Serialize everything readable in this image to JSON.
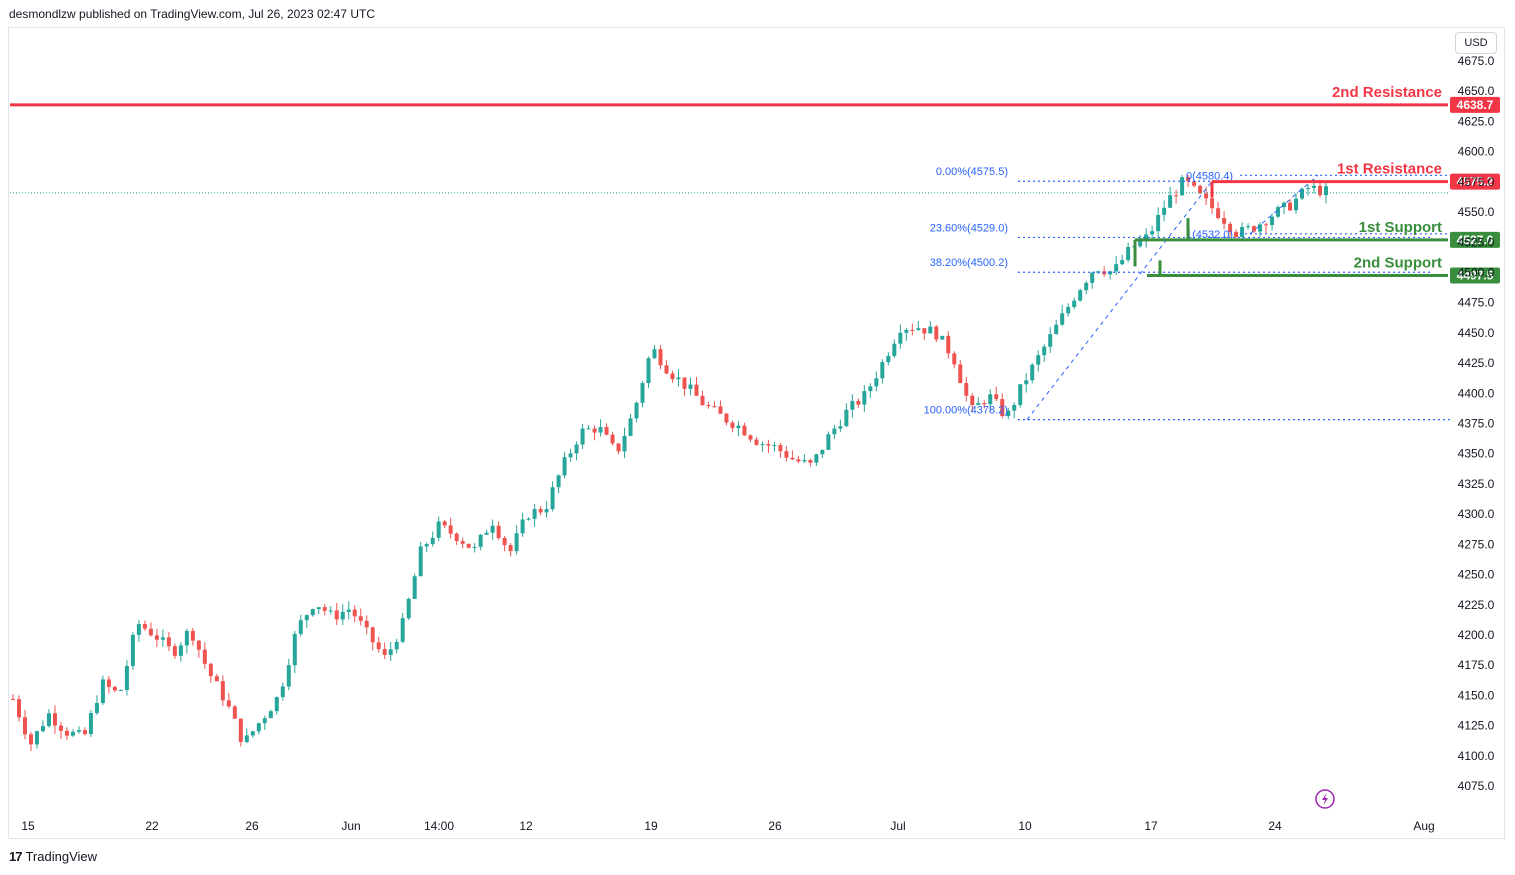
{
  "header": {
    "published": "desmondlzw published on TradingView.com, Jul 26, 2023 02:47 UTC"
  },
  "currency": "USD",
  "footer": {
    "logo_mark": "17",
    "logo_text": "TradingView"
  },
  "colors": {
    "up": "#26a69a",
    "down": "#ef5350",
    "resistance": "#f23645",
    "support": "#388e3c",
    "fib": "#2962ff",
    "axis_text": "#131722"
  },
  "icons": {
    "replay": "lightning-icon"
  },
  "chart_data": {
    "type": "candlestick",
    "y_axis": {
      "min": 4065,
      "max": 4685,
      "ticks": [
        "4675.0",
        "4650.0",
        "4625.0",
        "4600.0",
        "4575.0",
        "4550.0",
        "4525.0",
        "4500.0",
        "4475.0",
        "4450.0",
        "4425.0",
        "4400.0",
        "4375.0",
        "4350.0",
        "4325.0",
        "4300.0",
        "4275.0",
        "4250.0",
        "4225.0",
        "4200.0",
        "4175.0",
        "4150.0",
        "4125.0",
        "4100.0",
        "4075.0"
      ]
    },
    "x_axis": {
      "ticks": [
        "15",
        "22",
        "26",
        "Jun",
        "14:00",
        "12",
        "19",
        "26",
        "Jul",
        "10",
        "17",
        "24",
        "Aug"
      ]
    },
    "price_path": [
      4147,
      4110,
      4135,
      4120,
      4115,
      4160,
      4150,
      4210,
      4200,
      4185,
      4205,
      4170,
      4145,
      4110,
      4130,
      4150,
      4205,
      4228,
      4215,
      4222,
      4200,
      4180,
      4210,
      4270,
      4290,
      4282,
      4270,
      4295,
      4268,
      4300,
      4305,
      4340,
      4368,
      4372,
      4350,
      4385,
      4438,
      4418,
      4405,
      4390,
      4380,
      4372,
      4360,
      4355,
      4345,
      4340,
      4365,
      4385,
      4398,
      4425,
      4455,
      4455,
      4450,
      4430,
      4385,
      4398,
      4380,
      4410,
      4435,
      4460,
      4485,
      4505,
      4500,
      4520,
      4530,
      4558,
      4576,
      4561,
      4548,
      4532,
      4538,
      4548,
      4556,
      4570,
      4567
    ],
    "levels": [
      {
        "label": "2nd Resistance",
        "value": 4638.7,
        "tag": "4638.7",
        "kind": "resistance"
      },
      {
        "label": "1st Resistance",
        "value": 4575.2,
        "tag": "4575.2",
        "kind": "resistance"
      },
      {
        "label": "1st Support",
        "value": 4527.0,
        "tag": "4527.0",
        "kind": "support"
      },
      {
        "label": "2nd Support",
        "value": 4497.5,
        "tag": "4497.5",
        "kind": "support"
      }
    ],
    "fib_large": [
      {
        "label": "0.00%(4575.5)",
        "value": 4575.5
      },
      {
        "label": "23.60%(4529.0)",
        "value": 4529.0
      },
      {
        "label": "38.20%(4500.2)",
        "value": 4500.2
      },
      {
        "label": "100.00%(4378.2)",
        "value": 4378.2
      }
    ],
    "fib_small": [
      {
        "label": "0(4580.4)",
        "value": 4580.4
      },
      {
        "label": "1(4532.0)",
        "value": 4532.0
      }
    ]
  }
}
